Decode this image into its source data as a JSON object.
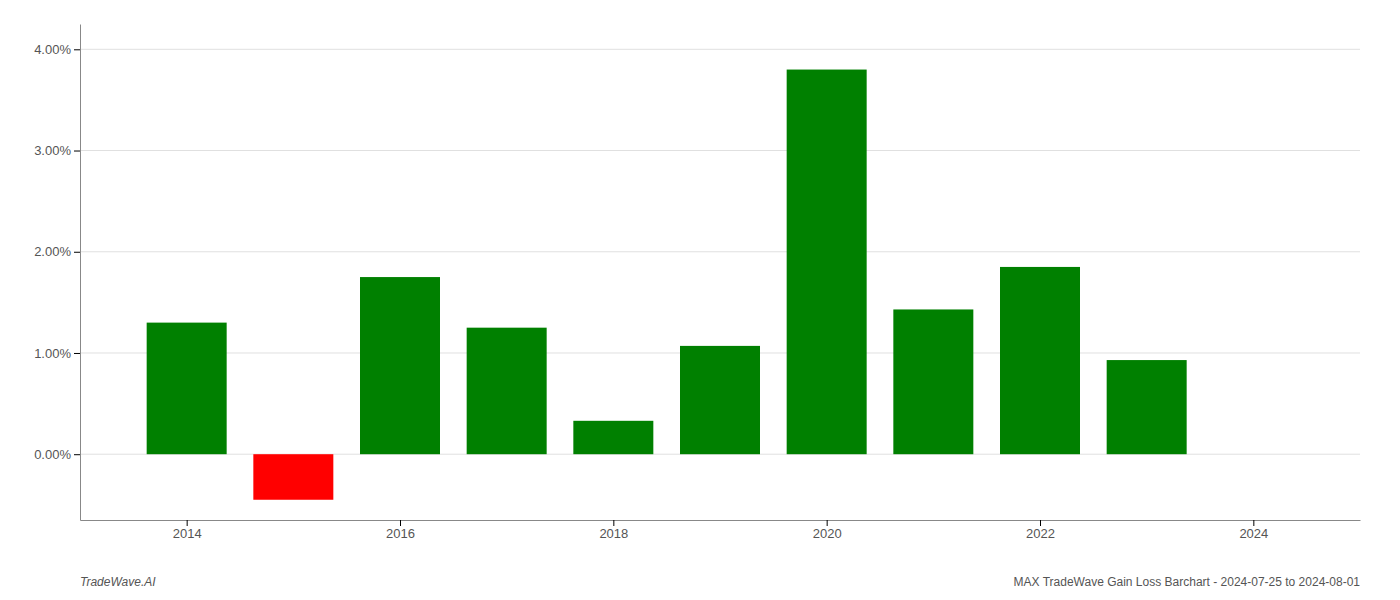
{
  "chart_data": {
    "type": "bar",
    "x": [
      2014,
      2015,
      2016,
      2017,
      2018,
      2019,
      2020,
      2021,
      2022,
      2023
    ],
    "values": [
      1.3,
      -0.45,
      1.75,
      1.25,
      0.33,
      1.07,
      3.8,
      1.43,
      1.85,
      0.93
    ],
    "colors": [
      "#008000",
      "#ff0000",
      "#008000",
      "#008000",
      "#008000",
      "#008000",
      "#008000",
      "#008000",
      "#008000",
      "#008000"
    ],
    "xlim": [
      2013.0,
      2025.0
    ],
    "xticks": [
      2014,
      2016,
      2018,
      2020,
      2022,
      2024
    ],
    "ylim": [
      -0.65,
      4.25
    ],
    "yticks": [
      {
        "value": 0.0,
        "label": "0.00%"
      },
      {
        "value": 1.0,
        "label": "1.00%"
      },
      {
        "value": 2.0,
        "label": "2.00%"
      },
      {
        "value": 3.0,
        "label": "3.00%"
      },
      {
        "value": 4.0,
        "label": "4.00%"
      }
    ],
    "grid": true,
    "annotations": [
      "TradeWave.AI",
      "MAX TradeWave Gain Loss Barchart - 2024-07-25 to 2024-08-01"
    ]
  }
}
